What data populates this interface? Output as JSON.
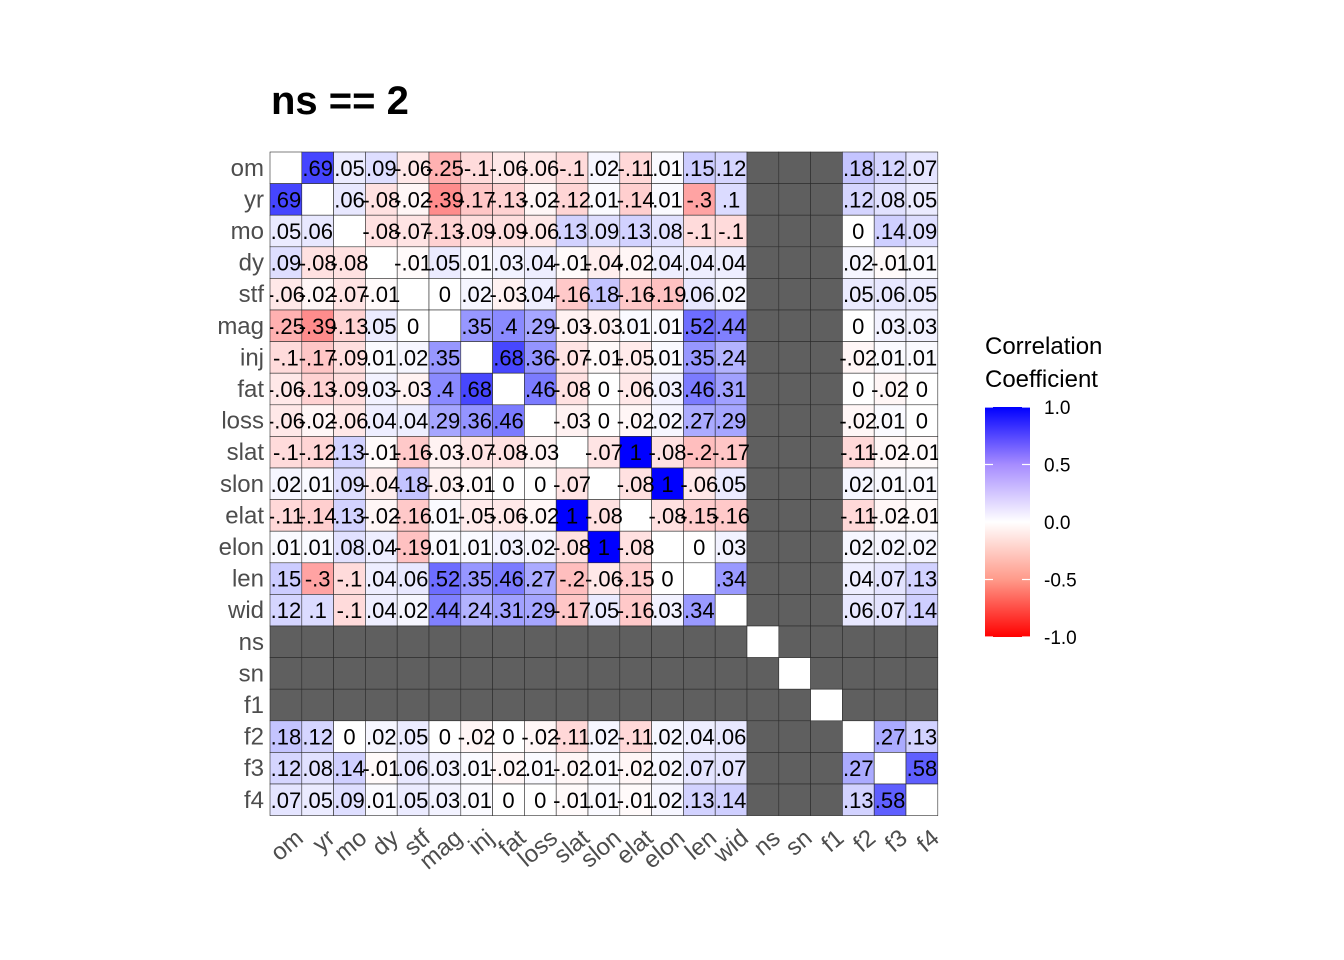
{
  "title": "ns == 2",
  "chart_data": {
    "type": "heatmap",
    "title": "ns == 2",
    "variables": [
      "om",
      "yr",
      "mo",
      "dy",
      "stf",
      "mag",
      "inj",
      "fat",
      "loss",
      "slat",
      "slon",
      "elat",
      "elon",
      "len",
      "wid",
      "ns",
      "sn",
      "f1",
      "f2",
      "f3",
      "f4"
    ],
    "na_variables": [
      "ns",
      "sn",
      "f1"
    ],
    "matrix": [
      [
        1,
        0.69,
        0.05,
        0.09,
        -0.06,
        -0.25,
        -0.1,
        -0.06,
        -0.06,
        -0.1,
        0.02,
        -0.11,
        0.01,
        0.15,
        0.12,
        null,
        null,
        null,
        0.18,
        0.12,
        0.07
      ],
      [
        0.69,
        1,
        0.06,
        -0.08,
        -0.02,
        -0.39,
        -0.17,
        -0.13,
        -0.02,
        -0.12,
        0.01,
        -0.14,
        0.01,
        -0.3,
        0.1,
        null,
        null,
        null,
        0.12,
        0.08,
        0.05
      ],
      [
        0.05,
        0.06,
        1,
        -0.08,
        -0.07,
        -0.13,
        -0.09,
        -0.09,
        -0.06,
        0.13,
        0.09,
        0.13,
        0.08,
        -0.1,
        -0.1,
        null,
        null,
        null,
        0,
        0.14,
        0.09
      ],
      [
        0.09,
        -0.08,
        -0.08,
        1,
        -0.01,
        0.05,
        0.01,
        0.03,
        0.04,
        -0.01,
        -0.04,
        -0.02,
        0.04,
        0.04,
        0.04,
        null,
        null,
        null,
        0.02,
        -0.01,
        0.01
      ],
      [
        -0.06,
        -0.02,
        -0.07,
        -0.01,
        1,
        0,
        0.02,
        -0.03,
        0.04,
        -0.16,
        0.18,
        -0.16,
        -0.19,
        0.06,
        0.02,
        null,
        null,
        null,
        0.05,
        0.06,
        0.05
      ],
      [
        -0.25,
        -0.39,
        -0.13,
        0.05,
        0,
        1,
        0.35,
        0.4,
        0.29,
        -0.03,
        -0.03,
        0.01,
        0.01,
        0.52,
        0.44,
        null,
        null,
        null,
        0,
        0.03,
        0.03
      ],
      [
        -0.1,
        -0.17,
        -0.09,
        0.01,
        0.02,
        0.35,
        1,
        0.68,
        0.36,
        -0.07,
        -0.01,
        -0.05,
        0.01,
        0.35,
        0.24,
        null,
        null,
        null,
        -0.02,
        0.01,
        0.01
      ],
      [
        -0.06,
        -0.13,
        -0.09,
        0.03,
        -0.03,
        0.4,
        0.68,
        1,
        0.46,
        -0.08,
        0,
        -0.06,
        0.03,
        0.46,
        0.31,
        null,
        null,
        null,
        0,
        -0.02,
        0
      ],
      [
        -0.06,
        -0.02,
        -0.06,
        0.04,
        0.04,
        0.29,
        0.36,
        0.46,
        1,
        -0.03,
        0,
        -0.02,
        0.02,
        0.27,
        0.29,
        null,
        null,
        null,
        -0.02,
        0.01,
        0
      ],
      [
        -0.1,
        -0.12,
        0.13,
        -0.01,
        -0.16,
        -0.03,
        -0.07,
        -0.08,
        -0.03,
        1,
        -0.07,
        1,
        -0.08,
        -0.2,
        -0.17,
        null,
        null,
        null,
        -0.11,
        -0.02,
        -0.01
      ],
      [
        0.02,
        0.01,
        0.09,
        -0.04,
        0.18,
        -0.03,
        -0.01,
        0,
        0,
        -0.07,
        1,
        -0.08,
        1,
        -0.06,
        0.05,
        null,
        null,
        null,
        0.02,
        0.01,
        0.01
      ],
      [
        -0.11,
        -0.14,
        0.13,
        -0.02,
        -0.16,
        0.01,
        -0.05,
        -0.06,
        -0.02,
        1,
        -0.08,
        1,
        -0.08,
        -0.15,
        -0.16,
        null,
        null,
        null,
        -0.11,
        -0.02,
        -0.01
      ],
      [
        0.01,
        0.01,
        0.08,
        0.04,
        -0.19,
        0.01,
        0.01,
        0.03,
        0.02,
        -0.08,
        1,
        -0.08,
        1,
        0,
        0.03,
        null,
        null,
        null,
        0.02,
        0.02,
        0.02
      ],
      [
        0.15,
        -0.3,
        -0.1,
        0.04,
        0.06,
        0.52,
        0.35,
        0.46,
        0.27,
        -0.2,
        -0.06,
        -0.15,
        0,
        1,
        0.34,
        null,
        null,
        null,
        0.04,
        0.07,
        0.13
      ],
      [
        0.12,
        0.1,
        -0.1,
        0.04,
        0.02,
        0.44,
        0.24,
        0.31,
        0.29,
        -0.17,
        0.05,
        -0.16,
        0.03,
        0.34,
        1,
        null,
        null,
        null,
        0.06,
        0.07,
        0.14
      ],
      [
        null,
        null,
        null,
        null,
        null,
        null,
        null,
        null,
        null,
        null,
        null,
        null,
        null,
        null,
        null,
        1,
        null,
        null,
        null,
        null,
        null
      ],
      [
        null,
        null,
        null,
        null,
        null,
        null,
        null,
        null,
        null,
        null,
        null,
        null,
        null,
        null,
        null,
        null,
        1,
        null,
        null,
        null,
        null
      ],
      [
        null,
        null,
        null,
        null,
        null,
        null,
        null,
        null,
        null,
        null,
        null,
        null,
        null,
        null,
        null,
        null,
        null,
        1,
        null,
        null,
        null
      ],
      [
        0.18,
        0.12,
        0,
        0.02,
        0.05,
        0,
        -0.02,
        0,
        -0.02,
        -0.11,
        0.02,
        -0.11,
        0.02,
        0.04,
        0.06,
        null,
        null,
        null,
        1,
        0.27,
        0.13
      ],
      [
        0.12,
        0.08,
        0.14,
        -0.01,
        0.06,
        0.03,
        0.01,
        -0.02,
        0.01,
        -0.02,
        0.01,
        -0.02,
        0.02,
        0.07,
        0.07,
        null,
        null,
        null,
        0.27,
        1,
        0.58
      ],
      [
        0.07,
        0.05,
        0.09,
        0.01,
        0.05,
        0.03,
        0.01,
        0,
        0,
        -0.01,
        0.01,
        -0.01,
        0.02,
        0.13,
        0.14,
        null,
        null,
        null,
        0.13,
        0.58,
        1
      ]
    ],
    "color_scale": {
      "min": -1.0,
      "mid": 0.0,
      "max": 1.0,
      "low_color": "#FF0000",
      "mid_color": "#FFFFFF",
      "high_color": "#0000FF",
      "na_color": "#5f5f5f"
    },
    "legend": {
      "title_line1": "Correlation",
      "title_line2": "Coefficient",
      "ticks": [
        "1.0",
        "0.5",
        "0.0",
        "-0.5",
        "-1.0"
      ],
      "tick_values": [
        1.0,
        0.5,
        0.0,
        -0.5,
        -1.0
      ],
      "position": "right"
    },
    "grid": false
  }
}
